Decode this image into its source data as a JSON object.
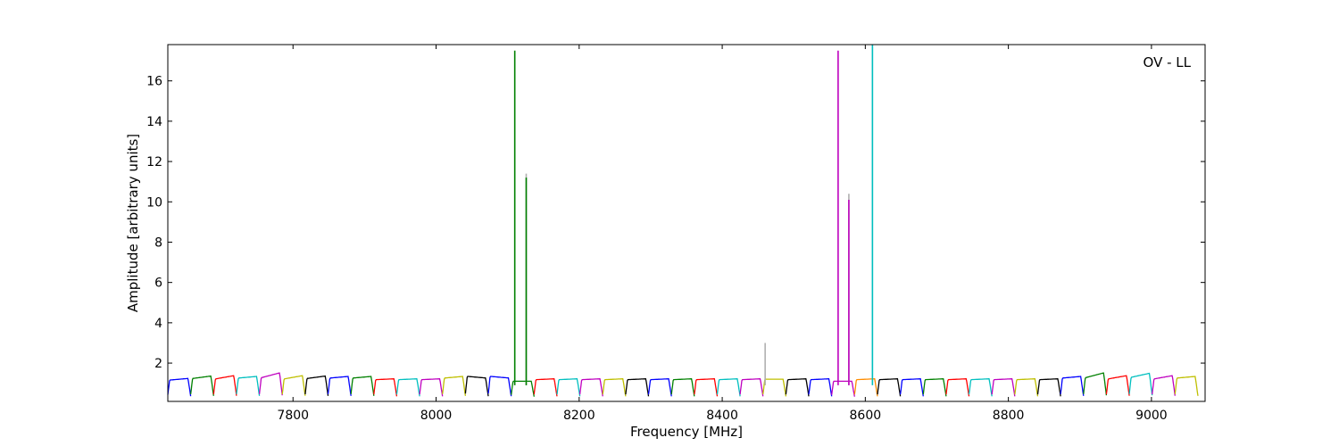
{
  "chart_data": {
    "type": "line",
    "xlabel": "Frequency [MHz]",
    "ylabel": "Amplitude [arbitrary units]",
    "annotation": "OV - LL",
    "annotation_position": "top-right",
    "xlim": [
      7625,
      9075
    ],
    "ylim": [
      0.1,
      17.8
    ],
    "xticks": [
      7800,
      8000,
      8200,
      8400,
      8600,
      8800,
      9000
    ],
    "yticks": [
      2,
      4,
      6,
      8,
      10,
      12,
      14,
      16
    ],
    "grid": false,
    "channel_width_mhz": 32,
    "colors": [
      "#0000ff",
      "#008000",
      "#ff0000",
      "#00bfbf",
      "#bf00bf",
      "#bfbf00",
      "#000000"
    ],
    "channels": [
      {
        "start": 7625,
        "color": "#0000ff",
        "peak": 1.2,
        "tilt": 0.1
      },
      {
        "start": 7657,
        "color": "#008000",
        "peak": 1.3,
        "tilt": 0.15
      },
      {
        "start": 7689,
        "color": "#ff0000",
        "peak": 1.3,
        "tilt": 0.2
      },
      {
        "start": 7721,
        "color": "#00bfbf",
        "peak": 1.3,
        "tilt": 0.1
      },
      {
        "start": 7753,
        "color": "#bf00bf",
        "peak": 1.4,
        "tilt": 0.3
      },
      {
        "start": 7785,
        "color": "#bfbf00",
        "peak": 1.3,
        "tilt": 0.2
      },
      {
        "start": 7817,
        "color": "#000000",
        "peak": 1.3,
        "tilt": 0.15
      },
      {
        "start": 7849,
        "color": "#0000ff",
        "peak": 1.3,
        "tilt": 0.1
      },
      {
        "start": 7881,
        "color": "#008000",
        "peak": 1.3,
        "tilt": 0.1
      },
      {
        "start": 7913,
        "color": "#ff0000",
        "peak": 1.2,
        "tilt": 0.05
      },
      {
        "start": 7945,
        "color": "#00bfbf",
        "peak": 1.2,
        "tilt": 0.05
      },
      {
        "start": 7977,
        "color": "#bf00bf",
        "peak": 1.2,
        "tilt": 0.05
      },
      {
        "start": 8009,
        "color": "#bfbf00",
        "peak": 1.3,
        "tilt": 0.1
      },
      {
        "start": 8041,
        "color": "#000000",
        "peak": 1.3,
        "tilt": -0.1
      },
      {
        "start": 8073,
        "color": "#0000ff",
        "peak": 1.3,
        "tilt": -0.1
      },
      {
        "start": 8105,
        "color": "#008000",
        "peak": 1.1,
        "tilt": 0.0
      },
      {
        "start": 8137,
        "color": "#ff0000",
        "peak": 1.2,
        "tilt": 0.05
      },
      {
        "start": 8169,
        "color": "#00bfbf",
        "peak": 1.2,
        "tilt": 0.05
      },
      {
        "start": 8201,
        "color": "#bf00bf",
        "peak": 1.2,
        "tilt": 0.05
      },
      {
        "start": 8233,
        "color": "#bfbf00",
        "peak": 1.2,
        "tilt": 0.05
      },
      {
        "start": 8265,
        "color": "#000000",
        "peak": 1.2,
        "tilt": 0.05
      },
      {
        "start": 8297,
        "color": "#0000ff",
        "peak": 1.2,
        "tilt": 0.05
      },
      {
        "start": 8329,
        "color": "#008000",
        "peak": 1.2,
        "tilt": 0.05
      },
      {
        "start": 8361,
        "color": "#ff0000",
        "peak": 1.2,
        "tilt": 0.05
      },
      {
        "start": 8393,
        "color": "#00bfbf",
        "peak": 1.2,
        "tilt": 0.05
      },
      {
        "start": 8425,
        "color": "#bf00bf",
        "peak": 1.2,
        "tilt": 0.05
      },
      {
        "start": 8457,
        "color": "#bfbf00",
        "peak": 1.2,
        "tilt": 0.0
      },
      {
        "start": 8489,
        "color": "#000000",
        "peak": 1.2,
        "tilt": 0.05
      },
      {
        "start": 8521,
        "color": "#0000ff",
        "peak": 1.2,
        "tilt": 0.05
      },
      {
        "start": 8553,
        "color": "#bf00bf",
        "peak": 1.1,
        "tilt": 0.0
      },
      {
        "start": 8585,
        "color": "#ff8c00",
        "peak": 1.2,
        "tilt": 0.05
      },
      {
        "start": 8617,
        "color": "#000000",
        "peak": 1.2,
        "tilt": 0.05
      },
      {
        "start": 8649,
        "color": "#0000ff",
        "peak": 1.2,
        "tilt": 0.05
      },
      {
        "start": 8681,
        "color": "#008000",
        "peak": 1.2,
        "tilt": 0.05
      },
      {
        "start": 8713,
        "color": "#ff0000",
        "peak": 1.2,
        "tilt": 0.05
      },
      {
        "start": 8745,
        "color": "#00bfbf",
        "peak": 1.2,
        "tilt": 0.05
      },
      {
        "start": 8777,
        "color": "#bf00bf",
        "peak": 1.2,
        "tilt": 0.05
      },
      {
        "start": 8809,
        "color": "#bfbf00",
        "peak": 1.2,
        "tilt": 0.05
      },
      {
        "start": 8841,
        "color": "#000000",
        "peak": 1.2,
        "tilt": 0.05
      },
      {
        "start": 8873,
        "color": "#0000ff",
        "peak": 1.3,
        "tilt": 0.1
      },
      {
        "start": 8905,
        "color": "#008000",
        "peak": 1.4,
        "tilt": 0.3
      },
      {
        "start": 8937,
        "color": "#ff0000",
        "peak": 1.3,
        "tilt": 0.2
      },
      {
        "start": 8969,
        "color": "#00bfbf",
        "peak": 1.4,
        "tilt": 0.25
      },
      {
        "start": 9001,
        "color": "#bf00bf",
        "peak": 1.3,
        "tilt": 0.2
      },
      {
        "start": 9033,
        "color": "#bfbf00",
        "peak": 1.3,
        "tilt": 0.1
      }
    ],
    "spikes": [
      {
        "x": 8110,
        "y": 17.5,
        "color": "#008000"
      },
      {
        "x": 8126,
        "y": 11.4,
        "color": "#b0b0b0"
      },
      {
        "x": 8126,
        "y": 11.2,
        "color": "#008000"
      },
      {
        "x": 8460,
        "y": 3.0,
        "color": "#b0b0b0"
      },
      {
        "x": 8562,
        "y": 17.5,
        "color": "#bf00bf"
      },
      {
        "x": 8577,
        "y": 10.4,
        "color": "#b0b0b0"
      },
      {
        "x": 8577,
        "y": 10.1,
        "color": "#bf00bf"
      },
      {
        "x": 8610,
        "y": 17.8,
        "color": "#00bfbf"
      }
    ]
  }
}
